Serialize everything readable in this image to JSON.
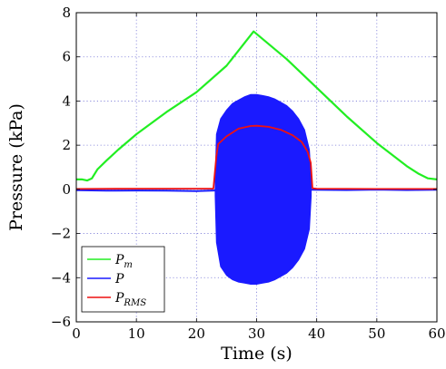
{
  "chart_data": {
    "type": "line",
    "title": "",
    "xlabel": "Time (s)",
    "ylabel": "Pressure (kPa)",
    "xlim": [
      0,
      60
    ],
    "ylim": [
      -6,
      8
    ],
    "x_ticks": [
      0,
      10,
      20,
      30,
      40,
      50,
      60
    ],
    "y_ticks": [
      -6,
      -4,
      -2,
      0,
      2,
      4,
      6,
      8
    ],
    "x_tick_labels": [
      "0",
      "10",
      "20",
      "30",
      "40",
      "50",
      "60"
    ],
    "y_tick_labels": [
      "−6",
      "−4",
      "−2",
      "0",
      "2",
      "4",
      "6",
      "8"
    ],
    "grid": true,
    "legend_position": "bottom-left",
    "series": [
      {
        "name": "P_m",
        "name_main": "P",
        "name_sub": "m",
        "color": "#22ee22",
        "style": "line",
        "x": [
          0,
          1,
          1.8,
          2.6,
          3.5,
          5,
          7,
          10,
          15,
          20,
          25,
          29.5,
          35,
          40,
          45,
          50,
          55,
          57,
          58.5,
          60
        ],
        "y": [
          0.45,
          0.45,
          0.4,
          0.5,
          0.9,
          1.3,
          1.8,
          2.5,
          3.5,
          4.4,
          5.6,
          7.15,
          5.9,
          4.6,
          3.3,
          2.1,
          1.05,
          0.7,
          0.5,
          0.45
        ]
      },
      {
        "name": "P",
        "name_main": "P",
        "name_sub": "",
        "color": "#1a1aff",
        "style": "envelope",
        "x": [
          23.1,
          23.3,
          24,
          25,
          26,
          27,
          28,
          29,
          30,
          31,
          32,
          33,
          34,
          35,
          36,
          37,
          38,
          38.8,
          39.1
        ],
        "upper": [
          0.3,
          2.5,
          3.2,
          3.6,
          3.9,
          4.05,
          4.2,
          4.3,
          4.3,
          4.25,
          4.2,
          4.1,
          3.95,
          3.8,
          3.55,
          3.2,
          2.7,
          1.8,
          0.3
        ],
        "lower": [
          -0.3,
          -2.4,
          -3.5,
          -3.9,
          -4.1,
          -4.2,
          -4.25,
          -4.3,
          -4.3,
          -4.25,
          -4.2,
          -4.1,
          -3.95,
          -3.8,
          -3.55,
          -3.2,
          -2.7,
          -1.8,
          -0.3
        ],
        "baseline_x": [
          0,
          5,
          10,
          15,
          20,
          23,
          39.2,
          45,
          50,
          55,
          60
        ],
        "baseline_y": [
          -0.04,
          -0.06,
          -0.05,
          -0.06,
          -0.08,
          -0.05,
          -0.02,
          -0.03,
          -0.01,
          -0.03,
          -0.02
        ]
      },
      {
        "name": "P_RMS",
        "name_main": "P",
        "name_sub": "RMS",
        "color": "#ee1111",
        "style": "line",
        "x": [
          0,
          10,
          20,
          22.8,
          23.3,
          23.6,
          25,
          27,
          29,
          30,
          32,
          34,
          36,
          37.5,
          38.5,
          39,
          39.3,
          40,
          50,
          60
        ],
        "y": [
          0.02,
          0.03,
          0.03,
          0.03,
          1.5,
          2.05,
          2.4,
          2.75,
          2.87,
          2.88,
          2.83,
          2.7,
          2.45,
          2.15,
          1.7,
          1.2,
          0.05,
          0.03,
          0.02,
          0.02
        ]
      }
    ]
  }
}
